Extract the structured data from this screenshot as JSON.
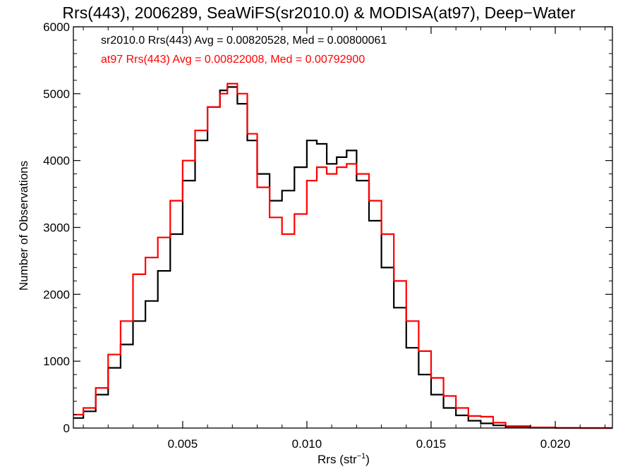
{
  "chart_data": {
    "type": "histogram-line",
    "title": "Rrs(443), 2006289, SeaWiFS(sr2010.0) & MODISA(at97), Deep−Water",
    "xlabel_main": "Rrs (str",
    "xlabel_sup": "−1",
    "xlabel_end": ")",
    "ylabel": "Number of Observations",
    "xlim": [
      0.0006,
      0.0223
    ],
    "ylim": [
      0,
      6000
    ],
    "x_ticks": [
      0.005,
      0.01,
      0.015,
      0.02
    ],
    "x_tick_labels": [
      "0.005",
      "0.010",
      "0.015",
      "0.020"
    ],
    "y_ticks": [
      0,
      1000,
      2000,
      3000,
      4000,
      5000,
      6000
    ],
    "y_tick_labels": [
      "0",
      "1000",
      "2000",
      "3000",
      "4000",
      "5000",
      "6000"
    ],
    "grid": false,
    "annotations": [
      {
        "text": "sr2010.0 Rrs(443) Avg = 0.00820528, Med = 0.00800061",
        "color": "#000000"
      },
      {
        "text": "at97 Rrs(443) Avg = 0.00822008, Med = 0.00792900",
        "color": "#ff0000"
      }
    ],
    "series": [
      {
        "name": "sr2010.0",
        "color": "#000000",
        "x": [
          0.0006,
          0.001,
          0.0015,
          0.002,
          0.0025,
          0.003,
          0.0035,
          0.004,
          0.0045,
          0.005,
          0.0055,
          0.006,
          0.0065,
          0.0068,
          0.0072,
          0.0076,
          0.008,
          0.0085,
          0.009,
          0.0095,
          0.01,
          0.0104,
          0.0108,
          0.0112,
          0.0116,
          0.012,
          0.0125,
          0.013,
          0.0135,
          0.014,
          0.0145,
          0.015,
          0.0155,
          0.016,
          0.0165,
          0.017,
          0.0175,
          0.018,
          0.019,
          0.02,
          0.021,
          0.0223
        ],
        "y": [
          150,
          250,
          500,
          900,
          1250,
          1600,
          1900,
          2350,
          2900,
          3700,
          4300,
          4800,
          5050,
          5100,
          4850,
          4300,
          3800,
          3400,
          3550,
          3900,
          4300,
          4250,
          3950,
          4050,
          4150,
          3700,
          3100,
          2400,
          1800,
          1200,
          800,
          500,
          300,
          190,
          110,
          70,
          40,
          20,
          5,
          1,
          0,
          0
        ]
      },
      {
        "name": "at97",
        "color": "#ff0000",
        "x": [
          0.0006,
          0.001,
          0.0015,
          0.002,
          0.0025,
          0.003,
          0.0035,
          0.004,
          0.0045,
          0.005,
          0.0055,
          0.006,
          0.0065,
          0.0068,
          0.0072,
          0.0076,
          0.008,
          0.0085,
          0.009,
          0.0095,
          0.01,
          0.0104,
          0.0108,
          0.0112,
          0.0116,
          0.012,
          0.0125,
          0.013,
          0.0135,
          0.014,
          0.0145,
          0.015,
          0.0155,
          0.016,
          0.0165,
          0.017,
          0.0175,
          0.018,
          0.019,
          0.02,
          0.021,
          0.0223
        ],
        "y": [
          200,
          300,
          600,
          1100,
          1600,
          2300,
          2550,
          2850,
          3400,
          4000,
          4450,
          4800,
          5000,
          5150,
          5000,
          4400,
          3600,
          3150,
          2900,
          3200,
          3700,
          3900,
          3800,
          3900,
          3950,
          3800,
          3400,
          2900,
          2200,
          1600,
          1150,
          750,
          480,
          300,
          180,
          170,
          80,
          30,
          10,
          2,
          0,
          0
        ]
      }
    ]
  }
}
